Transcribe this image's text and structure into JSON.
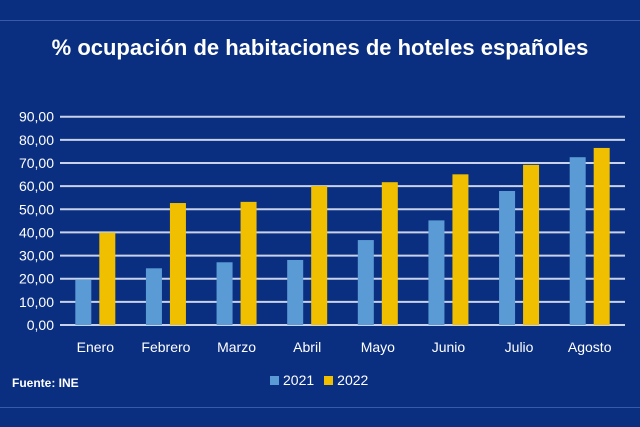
{
  "chart_data": {
    "type": "bar",
    "title": "% ocupación de habitaciones de hoteles españoles",
    "categories": [
      "Enero",
      "Febrero",
      "Marzo",
      "Abril",
      "Mayo",
      "Junio",
      "Julio",
      "Agosto"
    ],
    "series": [
      {
        "name": "2021",
        "color": "#5b9bd5",
        "values": [
          19.7,
          24.5,
          27.1,
          28.1,
          36.7,
          45.2,
          57.9,
          72.5
        ]
      },
      {
        "name": "2022",
        "color": "#f0c000",
        "values": [
          39.9,
          52.7,
          53.2,
          60.1,
          61.7,
          65.1,
          69.2,
          76.5
        ]
      }
    ],
    "yticks": [
      "0,00",
      "10,00",
      "20,00",
      "30,00",
      "40,00",
      "50,00",
      "60,00",
      "70,00",
      "80,00",
      "90,00"
    ],
    "ylim": [
      0,
      90
    ],
    "grid": true,
    "legend": "bottom",
    "source": "Fuente: INE"
  }
}
